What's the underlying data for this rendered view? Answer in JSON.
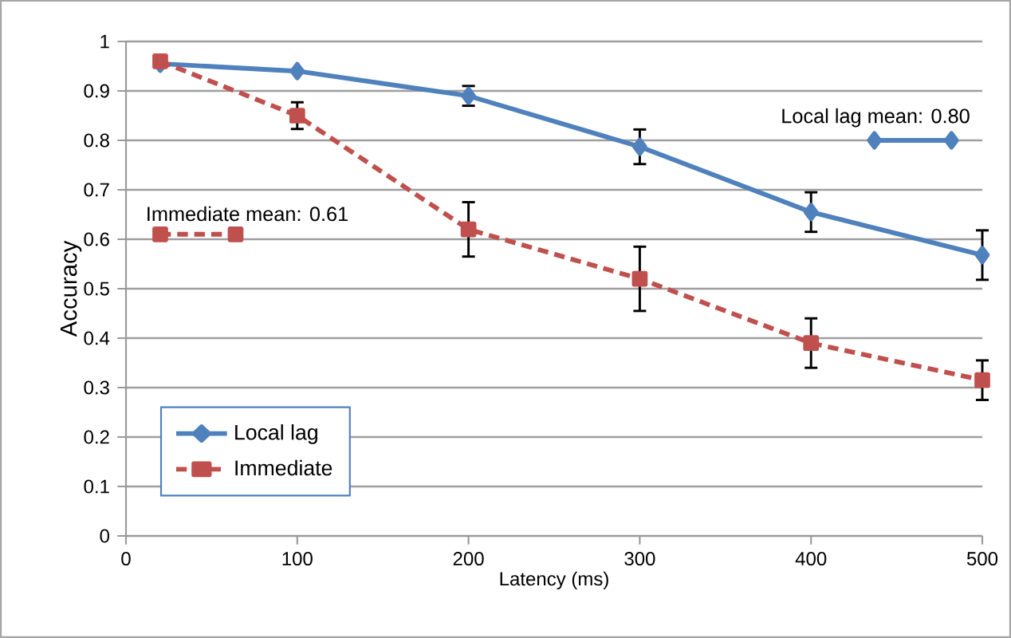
{
  "chart_data": {
    "type": "line",
    "xlabel": "Latency (ms)",
    "ylabel": "Accuracy",
    "x": [
      20,
      100,
      200,
      300,
      400,
      500
    ],
    "xlim": [
      0,
      500
    ],
    "xticks": [
      0,
      100,
      200,
      300,
      400,
      500
    ],
    "ylim": [
      0,
      1
    ],
    "yticks": [
      0,
      0.1,
      0.2,
      0.3,
      0.4,
      0.5,
      0.6,
      0.7,
      0.8,
      0.9,
      1
    ],
    "grid": "y",
    "legend": "bottom left",
    "series": [
      {
        "name": "Local lag",
        "color": "#4f81bd",
        "marker": "diamond",
        "line_style": "solid",
        "values": [
          0.955,
          0.94,
          0.89,
          0.787,
          0.655,
          0.568
        ],
        "errors": [
          null,
          null,
          0.02,
          0.035,
          0.04,
          0.05
        ]
      },
      {
        "name": "Immediate",
        "color": "#c0504d",
        "marker": "square",
        "line_style": "dashed",
        "values": [
          0.96,
          0.85,
          0.62,
          0.52,
          0.39,
          0.315
        ],
        "errors": [
          null,
          0.027,
          0.055,
          0.065,
          0.05,
          0.04
        ]
      },
      {
        "type": "line",
        "color": "#4f81bd",
        "marker": "diamond",
        "line_style": "solid",
        "x": [
          437,
          482
        ],
        "values": [
          0.8,
          0.8
        ]
      },
      {
        "type": "line",
        "color": "#c0504d",
        "marker": "square",
        "line_style": "dashed",
        "x": [
          20,
          64
        ],
        "values": [
          0.61,
          0.61
        ]
      }
    ],
    "annotations": [
      {
        "text": "Local lag mean: 0.80",
        "x": 482,
        "y": 0.8
      },
      {
        "text": "Immediate mean: 0.61",
        "x": 20,
        "y": 0.61
      }
    ]
  }
}
